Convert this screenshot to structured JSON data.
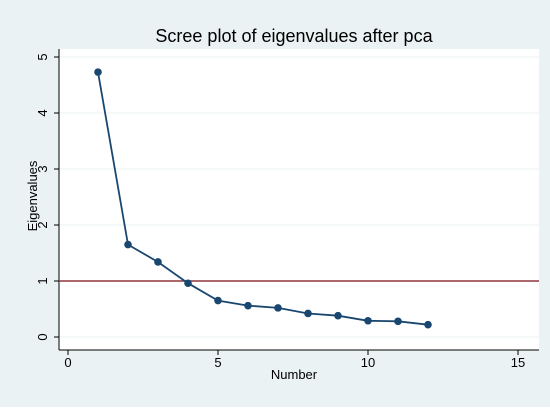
{
  "chart_data": {
    "type": "line",
    "title": "Scree plot of eigenvalues after pca",
    "xlabel": "Number",
    "ylabel": "Eigenvalues",
    "xlim": [
      0,
      15
    ],
    "ylim": [
      0,
      5
    ],
    "x_ticks": [
      0,
      5,
      10,
      15
    ],
    "y_ticks": [
      0,
      1,
      2,
      3,
      4,
      5
    ],
    "x_tick_labels": [
      "0",
      "5",
      "10",
      "15"
    ],
    "y_tick_labels": [
      "0",
      "1",
      "2",
      "3",
      "4",
      "5"
    ],
    "grid": "horizontal",
    "legend": "none",
    "series": [
      {
        "x": [
          1,
          2,
          3,
          4,
          5,
          6,
          7,
          8,
          9,
          10,
          11,
          12
        ],
        "values": [
          4.73,
          1.65,
          1.34,
          0.96,
          0.65,
          0.56,
          0.52,
          0.42,
          0.38,
          0.29,
          0.28,
          0.22
        ]
      }
    ],
    "reference_line": {
      "y": 1
    },
    "colors": {
      "outer_background": "#EAF2F3",
      "plot_background": "#FFFFFF",
      "series": "#1A476F",
      "reference_line": "#90353B",
      "grid": "#EAF2F3"
    }
  }
}
